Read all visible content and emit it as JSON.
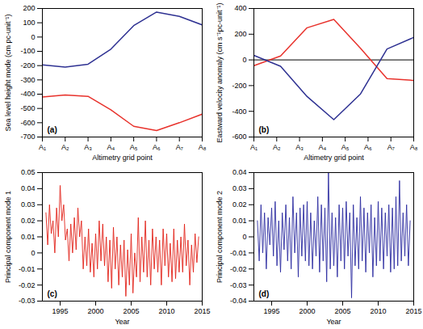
{
  "chart_data": [
    {
      "type": "line",
      "annotation": "(a)",
      "x_label": "Altimetry grid point",
      "y_label": "Sea level height mode (cm pc-unit⁻¹)",
      "x": [
        1,
        2,
        3,
        4,
        5,
        6,
        7,
        8
      ],
      "xlim": [
        1,
        8
      ],
      "xticks": [
        {
          "value": 1,
          "label": "A₁"
        },
        {
          "value": 2,
          "label": "A₂"
        },
        {
          "value": 3,
          "label": "A₃"
        },
        {
          "value": 4,
          "label": "A₄"
        },
        {
          "value": 5,
          "label": "A₅"
        },
        {
          "value": 6,
          "label": "A₆"
        },
        {
          "value": 7,
          "label": "A₇"
        },
        {
          "value": 8,
          "label": "A₈"
        }
      ],
      "ylim": [
        -700,
        200
      ],
      "yticks": [
        -700,
        -600,
        -500,
        -400,
        -300,
        -200,
        -100,
        0,
        100,
        200
      ],
      "grid": false,
      "series": [
        {
          "color": "#2e3192",
          "values": [
            -195,
            -210,
            -190,
            -85,
            80,
            175,
            145,
            85
          ]
        },
        {
          "color": "#e8322c",
          "values": [
            -420,
            -405,
            -415,
            -510,
            -625,
            -655,
            -600,
            -540
          ]
        }
      ]
    },
    {
      "type": "line",
      "annotation": "(b)",
      "x_label": "Altimetry grid point",
      "y_label": "Eastward velocity anomaly (cm s⁻¹pc-unit⁻¹)",
      "x": [
        1,
        2.17,
        3.33,
        4.5,
        5.67,
        6.83,
        8
      ],
      "xlim": [
        1,
        8
      ],
      "xticks": [
        {
          "value": 1,
          "label": "A₁"
        },
        {
          "value": 2,
          "label": "A₂"
        },
        {
          "value": 3,
          "label": "A₃"
        },
        {
          "value": 4,
          "label": "A₄"
        },
        {
          "value": 5,
          "label": "A₅"
        },
        {
          "value": 6,
          "label": "A₆"
        },
        {
          "value": 7,
          "label": "A₇"
        },
        {
          "value": 8,
          "label": "A₈"
        }
      ],
      "ylim": [
        -600,
        400
      ],
      "yticks": [
        -600,
        -400,
        -200,
        0,
        200,
        400
      ],
      "hline": 0,
      "grid": false,
      "series": [
        {
          "color": "#e8322c",
          "values": [
            -45,
            30,
            250,
            315,
            90,
            -145,
            -160
          ]
        },
        {
          "color": "#2e3192",
          "values": [
            35,
            -50,
            -285,
            -465,
            -265,
            85,
            175
          ]
        }
      ]
    },
    {
      "type": "line",
      "annotation": "(c)",
      "x_label": "Year",
      "y_label": "Principal component mode 1",
      "x": [
        1993,
        1993.25,
        1993.5,
        1993.75,
        1994,
        1994.25,
        1994.5,
        1994.75,
        1995,
        1995.25,
        1995.5,
        1995.75,
        1996,
        1996.25,
        1996.5,
        1996.75,
        1997,
        1997.25,
        1997.5,
        1997.75,
        1998,
        1998.25,
        1998.5,
        1998.75,
        1999,
        1999.25,
        1999.5,
        1999.75,
        2000,
        2000.25,
        2000.5,
        2000.75,
        2001,
        2001.25,
        2001.5,
        2001.75,
        2002,
        2002.25,
        2002.5,
        2002.75,
        2003,
        2003.25,
        2003.5,
        2003.75,
        2004,
        2004.25,
        2004.5,
        2004.75,
        2005,
        2005.25,
        2005.5,
        2005.75,
        2006,
        2006.25,
        2006.5,
        2006.75,
        2007,
        2007.25,
        2007.5,
        2007.75,
        2008,
        2008.25,
        2008.5,
        2008.75,
        2009,
        2009.25,
        2009.5,
        2009.75,
        2010,
        2010.25,
        2010.5,
        2010.75,
        2011,
        2011.25,
        2011.5,
        2011.75,
        2012,
        2012.25,
        2012.5,
        2012.75,
        2013,
        2013.25,
        2013.5,
        2013.75,
        2014,
        2014.25,
        2014.5
      ],
      "xlim": [
        1992.5,
        2015
      ],
      "xticks": [
        1995,
        2000,
        2005,
        2010,
        2015
      ],
      "ylim": [
        -0.03,
        0.05
      ],
      "yticks": [
        -0.03,
        -0.02,
        -0.01,
        0,
        0.01,
        0.02,
        0.03,
        0.04,
        0.05
      ],
      "grid": false,
      "series": [
        {
          "color": "#e2231a",
          "values": [
            0.025,
            0.005,
            0.03,
            0.012,
            0.02,
            0.0,
            0.028,
            0.01,
            0.042,
            0.02,
            0.03,
            0.008,
            0.015,
            -0.005,
            0.018,
            0.0,
            0.022,
            0.002,
            0.028,
            0.01,
            0.02,
            -0.01,
            0.01,
            -0.008,
            0.015,
            -0.012,
            0.006,
            -0.015,
            0.012,
            -0.01,
            0.02,
            -0.005,
            0.018,
            -0.008,
            0.01,
            -0.018,
            0.008,
            -0.022,
            0.016,
            -0.01,
            0.01,
            -0.02,
            0.005,
            -0.015,
            0.008,
            -0.027,
            0.002,
            -0.02,
            0.012,
            -0.025,
            0.0,
            -0.015,
            0.022,
            -0.018,
            0.01,
            -0.012,
            0.02,
            -0.015,
            0.008,
            -0.02,
            0.015,
            -0.01,
            0.01,
            -0.012,
            0.008,
            -0.02,
            0.015,
            -0.008,
            0.012,
            -0.015,
            0.006,
            -0.018,
            0.015,
            -0.016,
            0.008,
            -0.012,
            0.01,
            -0.012,
            0.018,
            -0.008,
            0.008,
            -0.02,
            0.005,
            -0.012,
            0.012,
            -0.006,
            0.01
          ]
        }
      ]
    },
    {
      "type": "line",
      "annotation": "(d)",
      "x_label": "Year",
      "y_label": "Principal component mode 2",
      "x": [
        1993,
        1993.25,
        1993.5,
        1993.75,
        1994,
        1994.25,
        1994.5,
        1994.75,
        1995,
        1995.25,
        1995.5,
        1995.75,
        1996,
        1996.25,
        1996.5,
        1996.75,
        1997,
        1997.25,
        1997.5,
        1997.75,
        1998,
        1998.25,
        1998.5,
        1998.75,
        1999,
        1999.25,
        1999.5,
        1999.75,
        2000,
        2000.25,
        2000.5,
        2000.75,
        2001,
        2001.25,
        2001.5,
        2001.75,
        2002,
        2002.25,
        2002.5,
        2002.75,
        2003,
        2003.25,
        2003.5,
        2003.75,
        2004,
        2004.25,
        2004.5,
        2004.75,
        2005,
        2005.25,
        2005.5,
        2005.75,
        2006,
        2006.25,
        2006.5,
        2006.75,
        2007,
        2007.25,
        2007.5,
        2007.75,
        2008,
        2008.25,
        2008.5,
        2008.75,
        2009,
        2009.25,
        2009.5,
        2009.75,
        2010,
        2010.25,
        2010.5,
        2010.75,
        2011,
        2011.25,
        2011.5,
        2011.75,
        2012,
        2012.25,
        2012.5,
        2012.75,
        2013,
        2013.25,
        2013.5,
        2013.75,
        2014,
        2014.25,
        2014.5
      ],
      "xlim": [
        1992.5,
        2015
      ],
      "xticks": [
        1995,
        2000,
        2005,
        2010,
        2015
      ],
      "ylim": [
        -0.04,
        0.04
      ],
      "yticks": [
        -0.04,
        -0.03,
        -0.02,
        -0.01,
        0,
        0.01,
        0.02,
        0.03,
        0.04
      ],
      "grid": false,
      "series": [
        {
          "color": "#2b2ba0",
          "values": [
            0.01,
            -0.015,
            0.02,
            -0.01,
            0.015,
            -0.02,
            0.012,
            -0.005,
            0.018,
            -0.012,
            0.022,
            -0.018,
            0.01,
            -0.022,
            0.015,
            -0.008,
            0.02,
            -0.015,
            0.012,
            -0.02,
            0.025,
            -0.01,
            0.015,
            -0.025,
            0.018,
            -0.012,
            0.02,
            -0.015,
            0.022,
            -0.018,
            0.015,
            -0.02,
            0.01,
            -0.012,
            0.025,
            -0.022,
            0.02,
            -0.015,
            0.018,
            -0.028,
            0.04,
            -0.02,
            0.015,
            -0.018,
            0.012,
            -0.025,
            0.02,
            -0.015,
            0.018,
            -0.02,
            0.022,
            -0.012,
            0.015,
            -0.038,
            0.02,
            -0.018,
            0.012,
            -0.02,
            0.025,
            -0.015,
            0.018,
            -0.022,
            0.015,
            -0.01,
            0.02,
            -0.025,
            0.012,
            -0.018,
            0.022,
            -0.015,
            0.018,
            -0.02,
            0.015,
            -0.012,
            0.02,
            -0.022,
            0.018,
            -0.02,
            0.025,
            -0.018,
            0.035,
            -0.015,
            0.015,
            -0.012,
            0.02,
            -0.018,
            0.01
          ]
        }
      ]
    }
  ]
}
